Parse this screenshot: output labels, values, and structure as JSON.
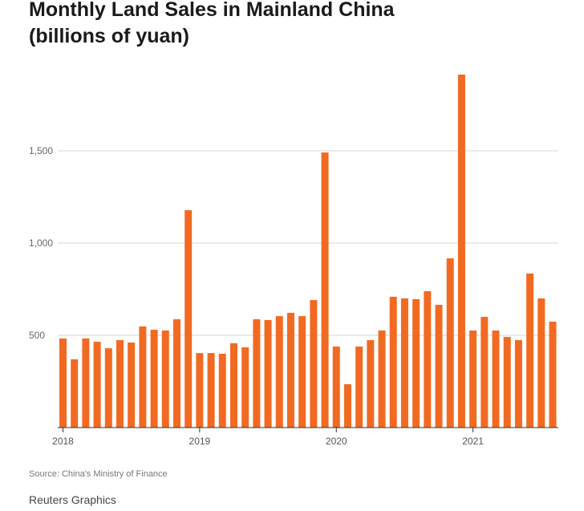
{
  "chart_data": {
    "type": "bar",
    "title": "Monthly Land Sales in Mainland China",
    "subtitle": "(billions of yuan)",
    "xlabel": "",
    "ylabel": "",
    "ylim": [
      0,
      1950
    ],
    "yticks": [
      500,
      1000,
      1500
    ],
    "ytick_labels": [
      "500",
      "1,000",
      "1,500"
    ],
    "xtick_labels": [
      "2018",
      "2019",
      "2020",
      "2021"
    ],
    "grid": true,
    "color": "#f26a22",
    "categories": [
      "2018-01",
      "2018-02",
      "2018-03",
      "2018-04",
      "2018-05",
      "2018-06",
      "2018-07",
      "2018-08",
      "2018-09",
      "2018-10",
      "2018-11",
      "2018-12",
      "2019-01",
      "2019-02",
      "2019-03",
      "2019-04",
      "2019-05",
      "2019-06",
      "2019-07",
      "2019-08",
      "2019-09",
      "2019-10",
      "2019-11",
      "2019-12",
      "2020-01",
      "2020-02",
      "2020-03",
      "2020-04",
      "2020-05",
      "2020-06",
      "2020-07",
      "2020-08",
      "2020-09",
      "2020-10",
      "2020-11",
      "2020-12",
      "2021-01",
      "2021-02",
      "2021-03",
      "2021-04",
      "2021-05",
      "2021-06",
      "2021-07",
      "2021-08"
    ],
    "values": [
      483,
      370,
      483,
      465,
      430,
      474,
      461,
      548,
      530,
      526,
      587,
      1178,
      404,
      404,
      400,
      457,
      435,
      587,
      583,
      604,
      622,
      604,
      691,
      1491,
      439,
      235,
      439,
      474,
      526,
      709,
      700,
      696,
      739,
      665,
      917,
      1913,
      526,
      600,
      526,
      491,
      474,
      835,
      700,
      574
    ]
  },
  "source": "Source: China's Ministry of Finance",
  "brand": "Reuters Graphics"
}
